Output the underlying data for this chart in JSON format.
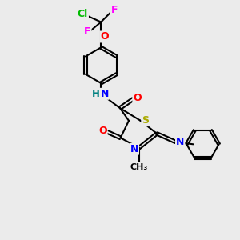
{
  "bg_color": "#ebebeb",
  "atom_colors": {
    "C": "#000000",
    "H": "#008080",
    "N": "#0000ff",
    "O": "#ff0000",
    "S": "#aaaa00",
    "F": "#ff00ff",
    "Cl": "#00bb00"
  },
  "bond_color": "#000000",
  "figsize": [
    3.0,
    3.0
  ],
  "dpi": 100
}
